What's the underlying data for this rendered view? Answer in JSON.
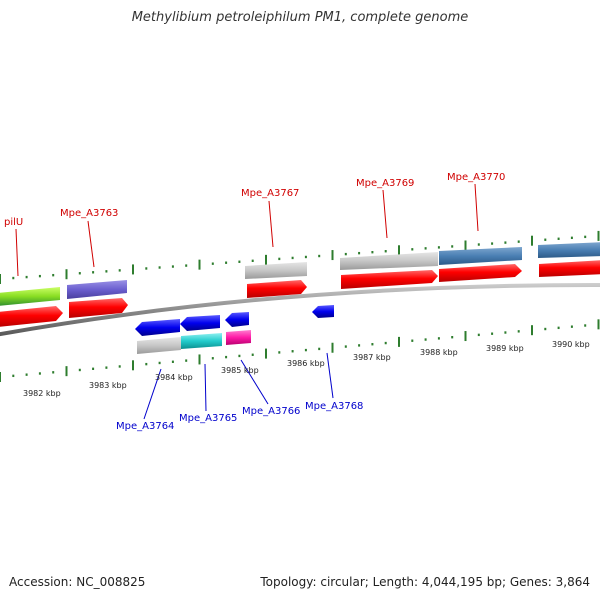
{
  "title": "Methylibium petroleiphilum PM1, complete genome",
  "footer": {
    "accession": "Accession: NC_008825",
    "info": "Topology: circular; Length: 4,044,195 bp; Genes: 3,864"
  },
  "scale": {
    "ticks": [
      "3982 kbp",
      "3983 kbp",
      "3984 kbp",
      "3985 kbp",
      "3986 kbp",
      "3987 kbp",
      "3988 kbp",
      "3989 kbp",
      "3990 kbp"
    ]
  },
  "labels": {
    "pilU": "pilU",
    "Mpe_A3763": "Mpe_A3763",
    "Mpe_A3764": "Mpe_A3764",
    "Mpe_A3765": "Mpe_A3765",
    "Mpe_A3766": "Mpe_A3766",
    "Mpe_A3767": "Mpe_A3767",
    "Mpe_A3768": "Mpe_A3768",
    "Mpe_A3769": "Mpe_A3769",
    "Mpe_A3770": "Mpe_A3770"
  },
  "colors": {
    "forward_label": "#d00000",
    "reverse_label": "#0000cc",
    "cds": "#ff0000",
    "backbone": "#888888",
    "tick": "#2e7d2e"
  }
}
